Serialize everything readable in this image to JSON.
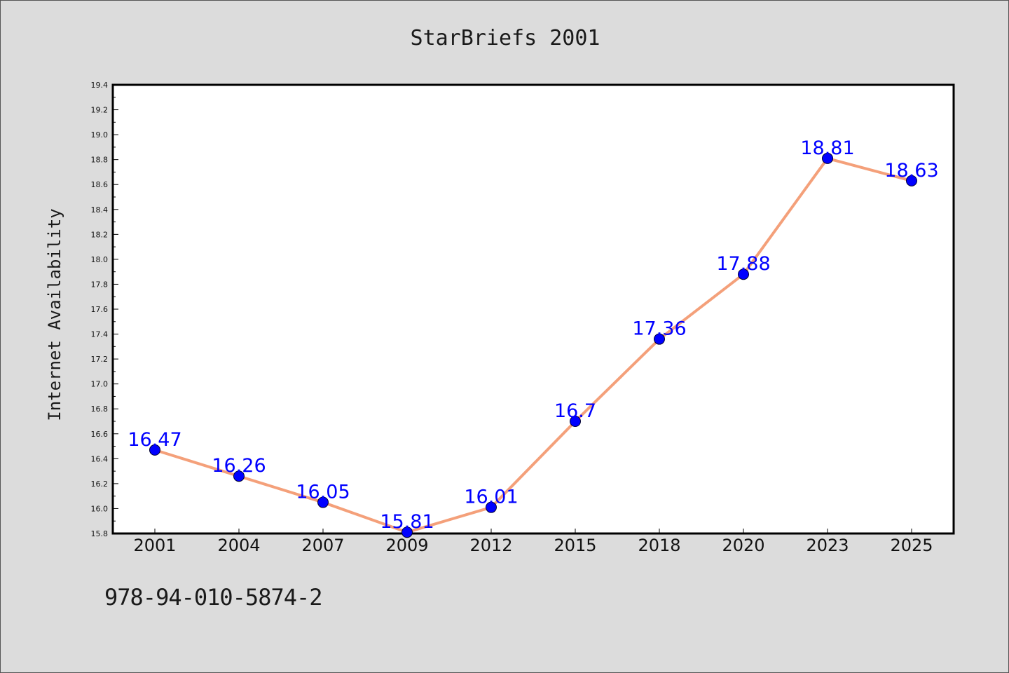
{
  "chart_data": {
    "type": "line",
    "title": "StarBriefs 2001",
    "xlabel": "",
    "ylabel": "Internet Availability",
    "categories": [
      "2001",
      "2004",
      "2007",
      "2009",
      "2012",
      "2015",
      "2018",
      "2020",
      "2023",
      "2025"
    ],
    "series": [
      {
        "values": [
          16.47,
          16.26,
          16.05,
          15.81,
          16.01,
          16.7,
          17.36,
          17.88,
          18.81,
          18.63
        ],
        "data_labels": [
          "16.47",
          "16.26",
          "16.05",
          "15.81",
          "16.01",
          "16.7",
          "17.36",
          "17.88",
          "18.81",
          "18.63"
        ],
        "line_color": "#f4a07a",
        "marker_color": "#0000ff",
        "label_color": "#0000ff"
      }
    ],
    "ylim": [
      15.8,
      19.4
    ],
    "yticks": [
      "15.8",
      "16.0",
      "16.2",
      "16.4",
      "16.6",
      "16.8",
      "17.0",
      "17.2",
      "17.4",
      "17.6",
      "17.8",
      "18.0",
      "18.2",
      "18.4",
      "18.6",
      "18.8",
      "19.0",
      "19.2",
      "19.4"
    ],
    "grid": false,
    "legend": "none"
  },
  "caption": "978-94-010-5874-2",
  "colors": {
    "background": "#dcdcdc",
    "plot_area": "#ffffff",
    "axis": "#000000"
  }
}
